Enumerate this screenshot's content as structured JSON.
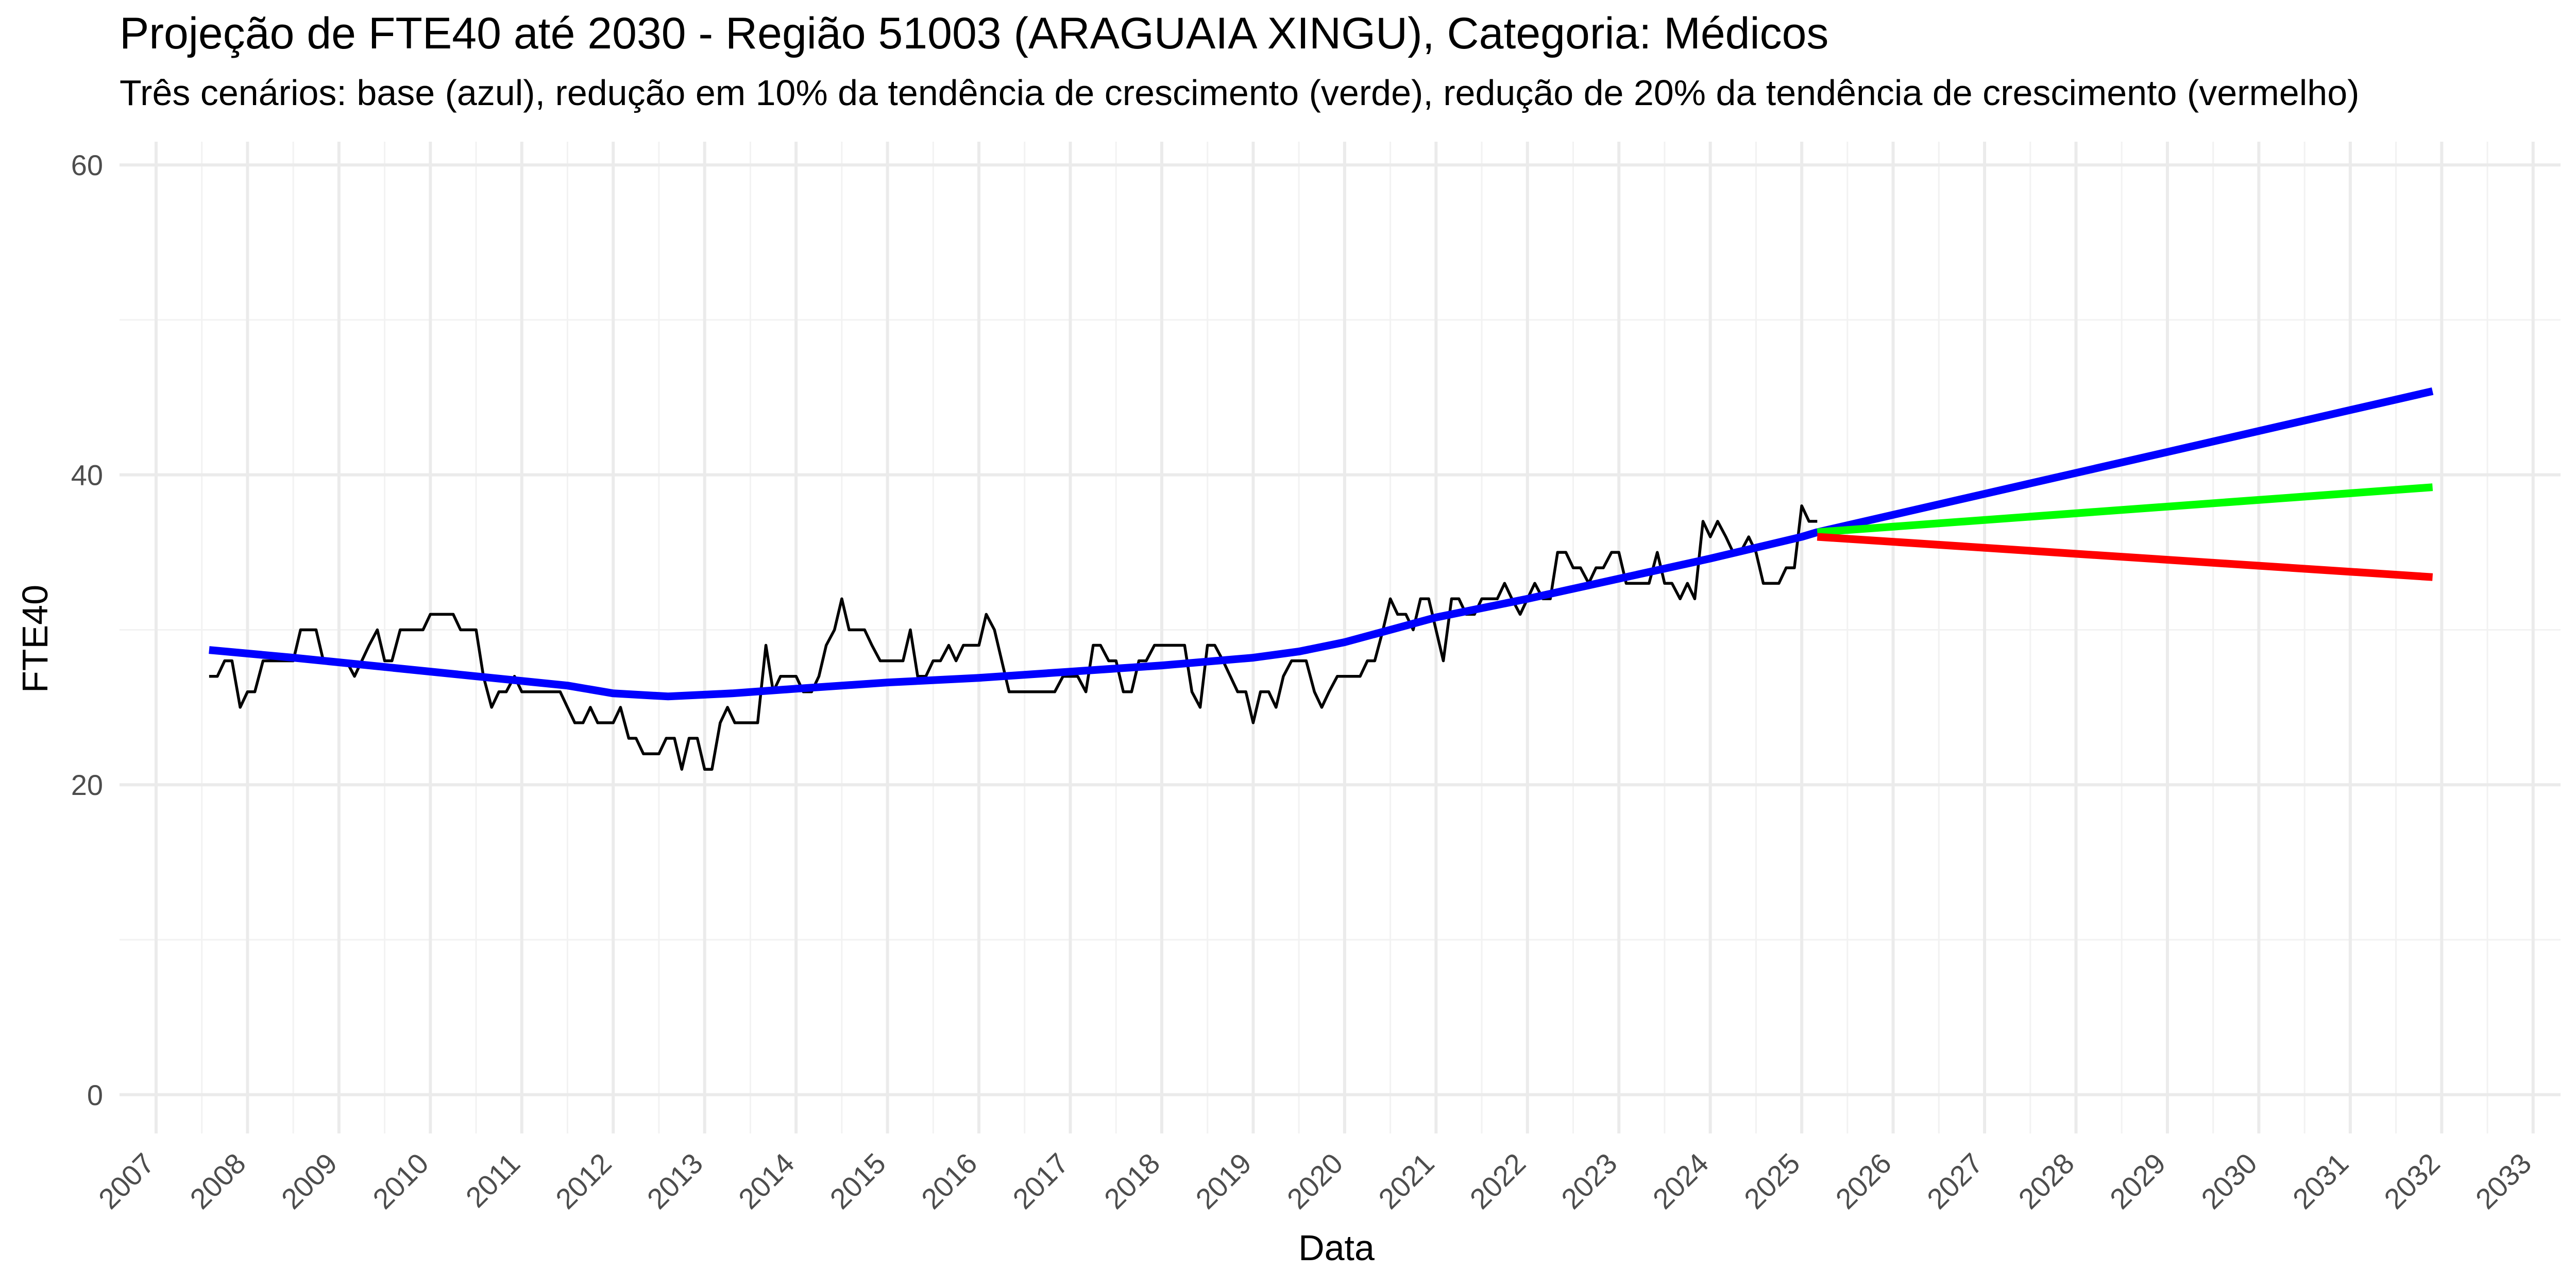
{
  "chart_data": {
    "type": "line",
    "title": "Projeção de FTE40 até 2030 - Região 51003 (ARAGUAIA XINGU), Categoria: Médicos",
    "subtitle": "Três cenários: base (azul), redução em 10% da tendência de crescimento (verde), redução de 20% da tendência de crescimento (vermelho)",
    "xlabel": "Data",
    "ylabel": "FTE40",
    "xlim": [
      2006.6,
      2033.3
    ],
    "ylim": [
      -2.5,
      61.5
    ],
    "grid": true,
    "x_ticks": [
      "2007",
      "2008",
      "2009",
      "2010",
      "2011",
      "2012",
      "2013",
      "2014",
      "2015",
      "2016",
      "2017",
      "2018",
      "2019",
      "2020",
      "2021",
      "2022",
      "2023",
      "2024",
      "2025",
      "2026",
      "2027",
      "2028",
      "2029",
      "2030",
      "2031",
      "2032",
      "2033"
    ],
    "y_ticks": [
      0,
      20,
      40,
      60
    ],
    "series": [
      {
        "color": "#000000",
        "style": "thin",
        "points": [
          [
            2007.58,
            27
          ],
          [
            2007.67,
            27
          ],
          [
            2007.75,
            28
          ],
          [
            2007.83,
            28
          ],
          [
            2007.92,
            25
          ],
          [
            2008.0,
            26
          ],
          [
            2008.08,
            26
          ],
          [
            2008.17,
            28
          ],
          [
            2008.25,
            28
          ],
          [
            2008.33,
            28
          ],
          [
            2008.42,
            28
          ],
          [
            2008.5,
            28
          ],
          [
            2008.58,
            30
          ],
          [
            2008.67,
            30
          ],
          [
            2008.75,
            30
          ],
          [
            2008.83,
            28
          ],
          [
            2008.92,
            28
          ],
          [
            2009.0,
            28
          ],
          [
            2009.08,
            28
          ],
          [
            2009.17,
            27
          ],
          [
            2009.25,
            28
          ],
          [
            2009.33,
            29
          ],
          [
            2009.42,
            30
          ],
          [
            2009.5,
            28
          ],
          [
            2009.58,
            28
          ],
          [
            2009.67,
            30
          ],
          [
            2009.75,
            30
          ],
          [
            2009.83,
            30
          ],
          [
            2009.92,
            30
          ],
          [
            2010.0,
            31
          ],
          [
            2010.08,
            31
          ],
          [
            2010.17,
            31
          ],
          [
            2010.25,
            31
          ],
          [
            2010.33,
            30
          ],
          [
            2010.42,
            30
          ],
          [
            2010.5,
            30
          ],
          [
            2010.58,
            27
          ],
          [
            2010.67,
            25
          ],
          [
            2010.75,
            26
          ],
          [
            2010.83,
            26
          ],
          [
            2010.92,
            27
          ],
          [
            2011.0,
            26
          ],
          [
            2011.08,
            26
          ],
          [
            2011.17,
            26
          ],
          [
            2011.25,
            26
          ],
          [
            2011.33,
            26
          ],
          [
            2011.42,
            26
          ],
          [
            2011.5,
            25
          ],
          [
            2011.58,
            24
          ],
          [
            2011.67,
            24
          ],
          [
            2011.75,
            25
          ],
          [
            2011.83,
            24
          ],
          [
            2011.92,
            24
          ],
          [
            2012.0,
            24
          ],
          [
            2012.08,
            25
          ],
          [
            2012.17,
            23
          ],
          [
            2012.25,
            23
          ],
          [
            2012.33,
            22
          ],
          [
            2012.42,
            22
          ],
          [
            2012.5,
            22
          ],
          [
            2012.58,
            23
          ],
          [
            2012.67,
            23
          ],
          [
            2012.75,
            21
          ],
          [
            2012.83,
            23
          ],
          [
            2012.92,
            23
          ],
          [
            2013.0,
            21
          ],
          [
            2013.08,
            21
          ],
          [
            2013.17,
            24
          ],
          [
            2013.25,
            25
          ],
          [
            2013.33,
            24
          ],
          [
            2013.42,
            24
          ],
          [
            2013.5,
            24
          ],
          [
            2013.58,
            24
          ],
          [
            2013.67,
            29
          ],
          [
            2013.75,
            26
          ],
          [
            2013.83,
            27
          ],
          [
            2013.92,
            27
          ],
          [
            2014.0,
            27
          ],
          [
            2014.08,
            26
          ],
          [
            2014.17,
            26
          ],
          [
            2014.25,
            27
          ],
          [
            2014.33,
            29
          ],
          [
            2014.42,
            30
          ],
          [
            2014.5,
            32
          ],
          [
            2014.58,
            30
          ],
          [
            2014.67,
            30
          ],
          [
            2014.75,
            30
          ],
          [
            2014.83,
            29
          ],
          [
            2014.92,
            28
          ],
          [
            2015.0,
            28
          ],
          [
            2015.08,
            28
          ],
          [
            2015.17,
            28
          ],
          [
            2015.25,
            30
          ],
          [
            2015.33,
            27
          ],
          [
            2015.42,
            27
          ],
          [
            2015.5,
            28
          ],
          [
            2015.58,
            28
          ],
          [
            2015.67,
            29
          ],
          [
            2015.75,
            28
          ],
          [
            2015.83,
            29
          ],
          [
            2015.92,
            29
          ],
          [
            2016.0,
            29
          ],
          [
            2016.08,
            31
          ],
          [
            2016.17,
            30
          ],
          [
            2016.25,
            28
          ],
          [
            2016.33,
            26
          ],
          [
            2016.42,
            26
          ],
          [
            2016.5,
            26
          ],
          [
            2016.58,
            26
          ],
          [
            2016.67,
            26
          ],
          [
            2016.75,
            26
          ],
          [
            2016.83,
            26
          ],
          [
            2016.92,
            27
          ],
          [
            2017.0,
            27
          ],
          [
            2017.08,
            27
          ],
          [
            2017.17,
            26
          ],
          [
            2017.25,
            29
          ],
          [
            2017.33,
            29
          ],
          [
            2017.42,
            28
          ],
          [
            2017.5,
            28
          ],
          [
            2017.58,
            26
          ],
          [
            2017.67,
            26
          ],
          [
            2017.75,
            28
          ],
          [
            2017.83,
            28
          ],
          [
            2017.92,
            29
          ],
          [
            2018.0,
            29
          ],
          [
            2018.08,
            29
          ],
          [
            2018.17,
            29
          ],
          [
            2018.25,
            29
          ],
          [
            2018.33,
            26
          ],
          [
            2018.42,
            25
          ],
          [
            2018.5,
            29
          ],
          [
            2018.58,
            29
          ],
          [
            2018.67,
            28
          ],
          [
            2018.75,
            27
          ],
          [
            2018.83,
            26
          ],
          [
            2018.92,
            26
          ],
          [
            2019.0,
            24
          ],
          [
            2019.08,
            26
          ],
          [
            2019.17,
            26
          ],
          [
            2019.25,
            25
          ],
          [
            2019.33,
            27
          ],
          [
            2019.42,
            28
          ],
          [
            2019.5,
            28
          ],
          [
            2019.58,
            28
          ],
          [
            2019.67,
            26
          ],
          [
            2019.75,
            25
          ],
          [
            2019.83,
            26
          ],
          [
            2019.92,
            27
          ],
          [
            2020.0,
            27
          ],
          [
            2020.08,
            27
          ],
          [
            2020.17,
            27
          ],
          [
            2020.25,
            28
          ],
          [
            2020.33,
            28
          ],
          [
            2020.42,
            30
          ],
          [
            2020.5,
            32
          ],
          [
            2020.58,
            31
          ],
          [
            2020.67,
            31
          ],
          [
            2020.75,
            30
          ],
          [
            2020.83,
            32
          ],
          [
            2020.92,
            32
          ],
          [
            2021.0,
            30
          ],
          [
            2021.08,
            28
          ],
          [
            2021.17,
            32
          ],
          [
            2021.25,
            32
          ],
          [
            2021.33,
            31
          ],
          [
            2021.42,
            31
          ],
          [
            2021.5,
            32
          ],
          [
            2021.58,
            32
          ],
          [
            2021.67,
            32
          ],
          [
            2021.75,
            33
          ],
          [
            2021.83,
            32
          ],
          [
            2021.92,
            31
          ],
          [
            2022.0,
            32
          ],
          [
            2022.08,
            33
          ],
          [
            2022.17,
            32
          ],
          [
            2022.25,
            32
          ],
          [
            2022.33,
            35
          ],
          [
            2022.42,
            35
          ],
          [
            2022.5,
            34
          ],
          [
            2022.58,
            34
          ],
          [
            2022.67,
            33
          ],
          [
            2022.75,
            34
          ],
          [
            2022.83,
            34
          ],
          [
            2022.92,
            35
          ],
          [
            2023.0,
            35
          ],
          [
            2023.08,
            33
          ],
          [
            2023.17,
            33
          ],
          [
            2023.25,
            33
          ],
          [
            2023.33,
            33
          ],
          [
            2023.42,
            35
          ],
          [
            2023.5,
            33
          ],
          [
            2023.58,
            33
          ],
          [
            2023.67,
            32
          ],
          [
            2023.75,
            33
          ],
          [
            2023.83,
            32
          ],
          [
            2023.92,
            37
          ],
          [
            2024.0,
            36
          ],
          [
            2024.08,
            37
          ],
          [
            2024.17,
            36
          ],
          [
            2024.25,
            35
          ],
          [
            2024.33,
            35
          ],
          [
            2024.42,
            36
          ],
          [
            2024.5,
            35
          ],
          [
            2024.58,
            33
          ],
          [
            2024.67,
            33
          ],
          [
            2024.75,
            33
          ],
          [
            2024.83,
            34
          ],
          [
            2024.92,
            34
          ],
          [
            2025.0,
            38
          ],
          [
            2025.08,
            37
          ],
          [
            2025.17,
            37
          ]
        ]
      },
      {
        "color": "#0000ff",
        "style": "thick",
        "points": [
          [
            2007.58,
            28.7
          ],
          [
            2008.5,
            28.2
          ],
          [
            2009.5,
            27.6
          ],
          [
            2010.5,
            27.0
          ],
          [
            2011.5,
            26.4
          ],
          [
            2012.0,
            25.9
          ],
          [
            2012.6,
            25.7
          ],
          [
            2013.3,
            25.9
          ],
          [
            2014.0,
            26.2
          ],
          [
            2015.0,
            26.6
          ],
          [
            2016.0,
            26.9
          ],
          [
            2017.0,
            27.3
          ],
          [
            2018.0,
            27.7
          ],
          [
            2019.0,
            28.2
          ],
          [
            2019.5,
            28.6
          ],
          [
            2020.0,
            29.2
          ],
          [
            2020.5,
            30.0
          ],
          [
            2021.0,
            30.8
          ],
          [
            2022.0,
            32.0
          ],
          [
            2023.0,
            33.3
          ],
          [
            2024.0,
            34.6
          ],
          [
            2025.0,
            36.0
          ],
          [
            2025.17,
            36.3
          ],
          [
            2031.9,
            45.4
          ]
        ]
      },
      {
        "color": "#00ff00",
        "style": "thick",
        "points": [
          [
            2025.17,
            36.3
          ],
          [
            2031.9,
            39.2
          ]
        ]
      },
      {
        "color": "#ff0000",
        "style": "thick",
        "points": [
          [
            2025.17,
            36.0
          ],
          [
            2031.9,
            33.4
          ]
        ]
      }
    ]
  }
}
